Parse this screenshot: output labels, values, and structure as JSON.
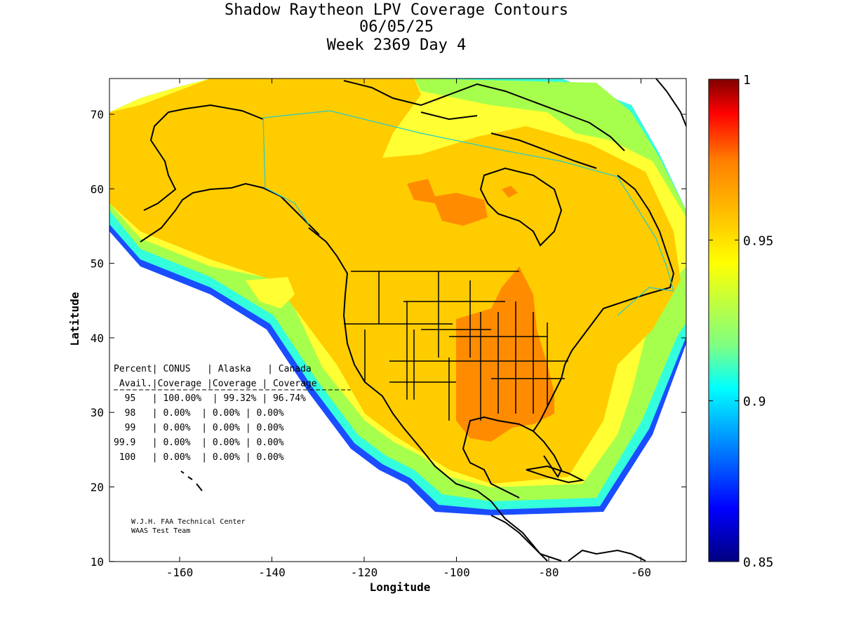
{
  "title": {
    "line1": "Shadow Raytheon LPV Coverage Contours",
    "line2": "06/05/25",
    "line3": "Week 2369 Day 4"
  },
  "axes": {
    "xlabel": "Longitude",
    "ylabel": "Latitude",
    "xticks": [
      "-160",
      "-140",
      "-120",
      "-100",
      "-80",
      "-60"
    ],
    "yticks": [
      "70",
      "60",
      "50",
      "40",
      "30",
      "20",
      "10"
    ]
  },
  "colorbar": {
    "ticks": [
      "1",
      "0.95",
      "0.9",
      "0.85"
    ],
    "colors": {
      "dark_red": "#800000",
      "red": "#ff0000",
      "orange": "#ff8000",
      "amber": "#ffcc00",
      "yellow": "#ffff00",
      "green": "#80ff80",
      "cyan": "#00ffff",
      "blue": "#0000ff",
      "navy": "#000080"
    }
  },
  "coverage_table": {
    "header1": "Percent| CONUS   | Alaska   | Canada",
    "header2": " Avail.|Coverage |Coverage | Coverage",
    "rows": [
      "  95   | 100.00%  | 99.32% | 96.74%",
      "  98   | 0.00%  | 0.00% | 0.00%",
      "  99   | 0.00%  | 0.00% | 0.00%",
      "99.9   | 0.00%  | 0.00% | 0.00%",
      " 100   | 0.00%  | 0.00% | 0.00%"
    ]
  },
  "credit": {
    "line1": "W.J.H. FAA Technical Center",
    "line2": "WAAS Test Team"
  },
  "region_colors": {
    "core": "#ffcc00",
    "high": "#ff8c00",
    "mid": "#ffff33",
    "lower": "#a6ff4d",
    "edge_cyan": "#33ffdd",
    "edge_blue": "#0055ff"
  }
}
